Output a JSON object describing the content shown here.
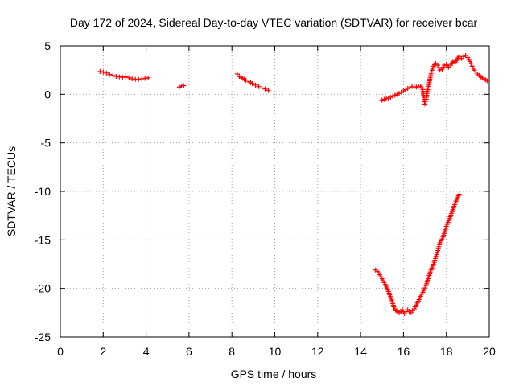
{
  "chart_data": {
    "type": "scatter",
    "title": "Day 172 of 2024, Sidereal Day-to-day VTEC variation (SDTVAR) for receiver bcar",
    "xlabel": "GPS time / hours",
    "ylabel": "SDTVAR / TECUs",
    "xlim": [
      0,
      20
    ],
    "ylim": [
      -25,
      5
    ],
    "xticks": [
      0,
      2,
      4,
      6,
      8,
      10,
      12,
      14,
      16,
      18,
      20
    ],
    "xtick_labels": [
      "0",
      "2",
      "4",
      "6",
      "8",
      "10",
      "12",
      "14",
      "16",
      "18",
      "20"
    ],
    "yticks": [
      -25,
      -20,
      -15,
      -10,
      -5,
      0,
      5
    ],
    "ytick_labels": [
      "-25",
      "-20",
      "-15",
      "-10",
      "-5",
      "0",
      "5"
    ],
    "grid": true,
    "marker": "+",
    "marker_color": "#ff0000",
    "series": [
      {
        "name": "SDTVAR",
        "points": [
          [
            1.85,
            2.35
          ],
          [
            2.0,
            2.3
          ],
          [
            2.15,
            2.2
          ],
          [
            2.3,
            2.05
          ],
          [
            2.45,
            1.95
          ],
          [
            2.6,
            1.85
          ],
          [
            2.75,
            1.8
          ],
          [
            2.9,
            1.75
          ],
          [
            3.05,
            1.8
          ],
          [
            3.2,
            1.7
          ],
          [
            3.35,
            1.6
          ],
          [
            3.5,
            1.55
          ],
          [
            3.65,
            1.55
          ],
          [
            3.8,
            1.6
          ],
          [
            3.95,
            1.65
          ],
          [
            4.1,
            1.7
          ],
          [
            5.55,
            0.75
          ],
          [
            5.65,
            0.85
          ],
          [
            5.75,
            0.9
          ],
          [
            8.25,
            2.1
          ],
          [
            8.35,
            1.85
          ],
          [
            8.5,
            1.65
          ],
          [
            8.65,
            1.45
          ],
          [
            8.8,
            1.3
          ],
          [
            8.95,
            1.1
          ],
          [
            9.1,
            0.95
          ],
          [
            9.25,
            0.8
          ],
          [
            9.4,
            0.65
          ],
          [
            9.55,
            0.55
          ],
          [
            9.7,
            0.4
          ],
          [
            15.0,
            -0.6
          ],
          [
            15.2,
            -0.45
          ],
          [
            15.4,
            -0.3
          ],
          [
            15.6,
            -0.1
          ],
          [
            15.8,
            0.1
          ],
          [
            16.0,
            0.35
          ],
          [
            16.2,
            0.6
          ],
          [
            16.4,
            0.8
          ],
          [
            16.6,
            0.75
          ],
          [
            16.8,
            0.85
          ],
          [
            16.9,
            0.5
          ],
          [
            16.95,
            -0.3
          ],
          [
            17.0,
            -1.0
          ],
          [
            17.05,
            -0.7
          ],
          [
            17.1,
            0.1
          ],
          [
            17.2,
            1.2
          ],
          [
            17.3,
            2.3
          ],
          [
            17.4,
            2.9
          ],
          [
            17.5,
            3.2
          ],
          [
            17.6,
            3.0
          ],
          [
            17.7,
            2.5
          ],
          [
            17.8,
            2.6
          ],
          [
            17.9,
            3.0
          ],
          [
            18.0,
            3.1
          ],
          [
            18.1,
            2.8
          ],
          [
            18.2,
            3.0
          ],
          [
            18.3,
            3.4
          ],
          [
            18.4,
            3.3
          ],
          [
            18.5,
            3.6
          ],
          [
            18.6,
            3.9
          ],
          [
            18.7,
            3.7
          ],
          [
            18.8,
            3.9
          ],
          [
            18.9,
            4.0
          ],
          [
            19.0,
            3.8
          ],
          [
            19.1,
            3.4
          ],
          [
            19.2,
            2.9
          ],
          [
            19.3,
            2.5
          ],
          [
            19.45,
            2.1
          ],
          [
            19.6,
            1.8
          ],
          [
            19.75,
            1.6
          ],
          [
            19.9,
            1.4
          ],
          [
            14.7,
            -18.1
          ],
          [
            14.85,
            -18.4
          ],
          [
            15.0,
            -19.0
          ],
          [
            15.15,
            -19.6
          ],
          [
            15.3,
            -20.3
          ],
          [
            15.45,
            -21.2
          ],
          [
            15.55,
            -21.9
          ],
          [
            15.65,
            -22.3
          ],
          [
            15.8,
            -22.5
          ],
          [
            15.95,
            -22.2
          ],
          [
            16.05,
            -22.6
          ],
          [
            16.2,
            -22.2
          ],
          [
            16.35,
            -22.5
          ],
          [
            16.5,
            -22.1
          ],
          [
            16.65,
            -21.5
          ],
          [
            16.8,
            -20.8
          ],
          [
            16.95,
            -20.2
          ],
          [
            17.05,
            -19.7
          ],
          [
            17.15,
            -19.0
          ],
          [
            17.25,
            -18.3
          ],
          [
            17.4,
            -17.5
          ],
          [
            17.55,
            -16.5
          ],
          [
            17.7,
            -15.3
          ],
          [
            17.85,
            -14.7
          ],
          [
            18.0,
            -13.6
          ],
          [
            18.15,
            -12.8
          ],
          [
            18.3,
            -11.9
          ],
          [
            18.45,
            -11.0
          ],
          [
            18.6,
            -10.3
          ]
        ]
      }
    ]
  }
}
